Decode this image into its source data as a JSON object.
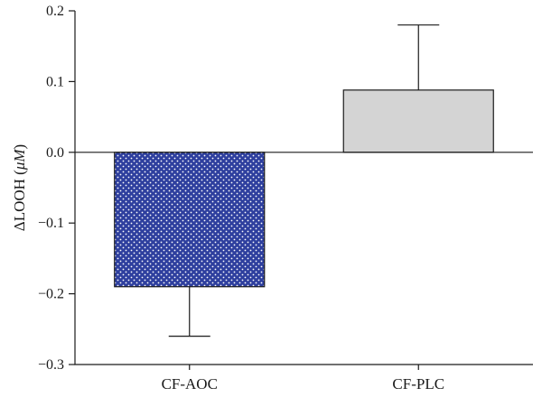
{
  "chart_data": {
    "type": "bar",
    "categories": [
      "CF-AOC",
      "CF-PLC"
    ],
    "values": [
      -0.19,
      0.088
    ],
    "error_upper": [
      -0.26,
      0.18
    ],
    "bar_styles": [
      {
        "fill": "#2e3f9e",
        "pattern": "white-dots"
      },
      {
        "fill": "#d4d4d4",
        "pattern": "none"
      }
    ],
    "ylabel_prefix": "ΔLOOH (",
    "ylabel_unit": "μM",
    "ylabel_suffix": ")",
    "ylim": [
      -0.3,
      0.2
    ],
    "yticks": [
      -0.3,
      -0.2,
      -0.1,
      0.0,
      0.1,
      0.2
    ],
    "ytick_labels": [
      "−0.3",
      "−0.2",
      "−0.1",
      "0.0",
      "0.1",
      "0.2"
    ],
    "grid": false,
    "legend": "none"
  }
}
